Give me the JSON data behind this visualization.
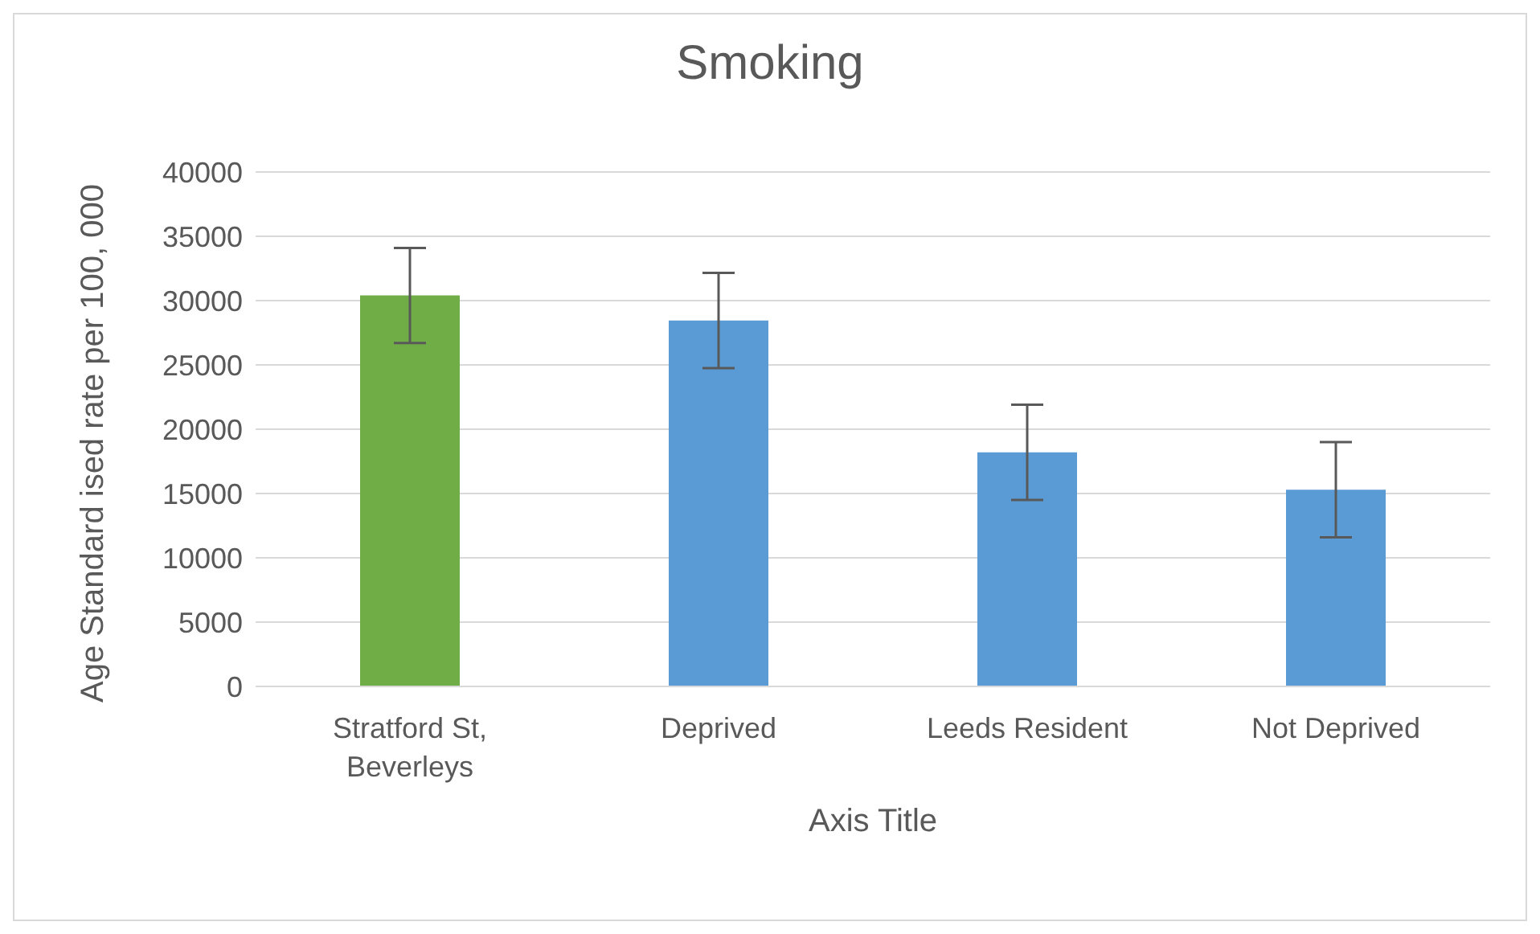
{
  "chart_data": {
    "type": "bar",
    "title": "Smoking",
    "xlabel": "Axis Title",
    "ylabel": "Age Standard ised rate per 100, 000",
    "categories": [
      "Stratford St, Beverleys",
      "Deprived",
      "Leeds Resident",
      "Not Deprived"
    ],
    "values": [
      30400,
      28450,
      18200,
      15300
    ],
    "colors": [
      "#70ad47",
      "#5b9bd5",
      "#5b9bd5",
      "#5b9bd5"
    ],
    "errors": [
      3700,
      3700,
      3700,
      3700
    ],
    "ylim": [
      0,
      40000
    ],
    "yticks": [
      0,
      5000,
      10000,
      15000,
      20000,
      25000,
      30000,
      35000,
      40000
    ],
    "grid": "y",
    "legend": false
  }
}
